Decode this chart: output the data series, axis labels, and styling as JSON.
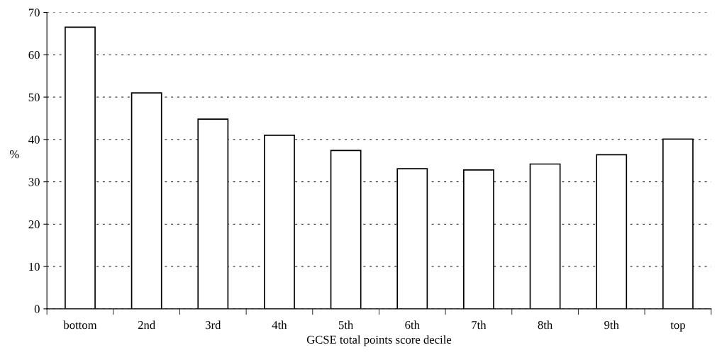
{
  "chart_data": {
    "type": "bar",
    "xlabel": "GCSE total points score decile",
    "ylabel": "%",
    "categories": [
      "bottom",
      "2nd",
      "3rd",
      "4th",
      "5th",
      "6th",
      "7th",
      "8th",
      "9th",
      "top"
    ],
    "values": [
      66.5,
      51,
      44.8,
      41,
      37.4,
      33.1,
      32.8,
      34.2,
      36.4,
      40.1
    ],
    "color": "#ffffff",
    "ylim": [
      0,
      70
    ],
    "yticks": [
      0,
      10,
      20,
      30,
      40,
      50,
      60,
      70
    ],
    "grid": "y"
  }
}
